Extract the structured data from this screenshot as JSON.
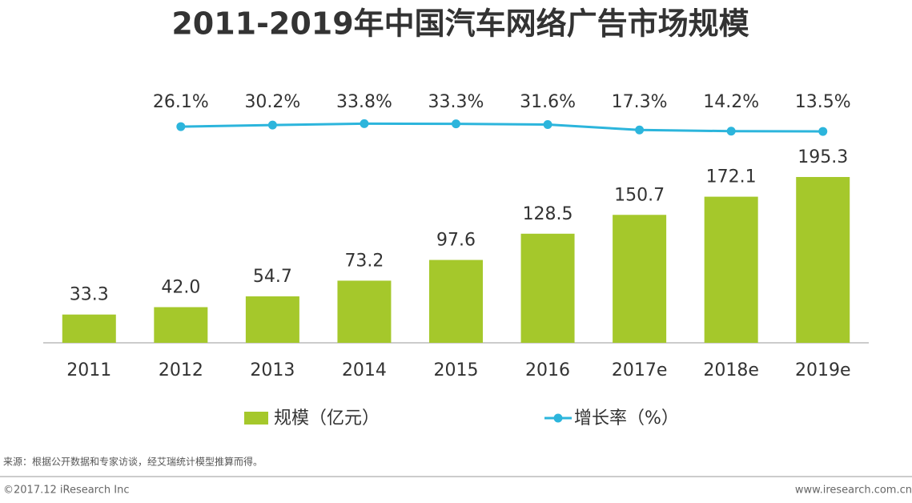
{
  "chart_data": {
    "type": "bar",
    "title": "2011-2019年中国汽车网络广告市场规模",
    "categories": [
      "2011",
      "2012",
      "2013",
      "2014",
      "2015",
      "2016",
      "2017e",
      "2018e",
      "2019e"
    ],
    "series": [
      {
        "name": "规模（亿元）",
        "color": "#a5c82b",
        "type": "bar",
        "values": [
          33.3,
          42.0,
          54.7,
          73.2,
          97.6,
          128.5,
          150.7,
          172.1,
          195.3
        ],
        "value_labels": [
          "33.3",
          "42.0",
          "54.7",
          "73.2",
          "97.6",
          "128.5",
          "150.7",
          "172.1",
          "195.3"
        ]
      },
      {
        "name": "增长率（%）",
        "color": "#2cb5dc",
        "type": "line",
        "axis": "y2",
        "values": [
          null,
          26.1,
          30.2,
          33.8,
          33.3,
          31.6,
          17.3,
          14.2,
          13.5
        ],
        "value_labels": [
          null,
          "26.1%",
          "30.2%",
          "33.8%",
          "33.3%",
          "31.6%",
          "17.3%",
          "14.2%",
          "13.5%"
        ]
      }
    ],
    "ylim": [
      0,
      200
    ],
    "y2lim": [
      0,
      50
    ],
    "source": "来源：根据公开数据和专家访谈，经艾瑞统计模型推算而得。",
    "copyright": "©2017.12 iResearch Inc",
    "website": "www.iresearch.com.cn"
  }
}
